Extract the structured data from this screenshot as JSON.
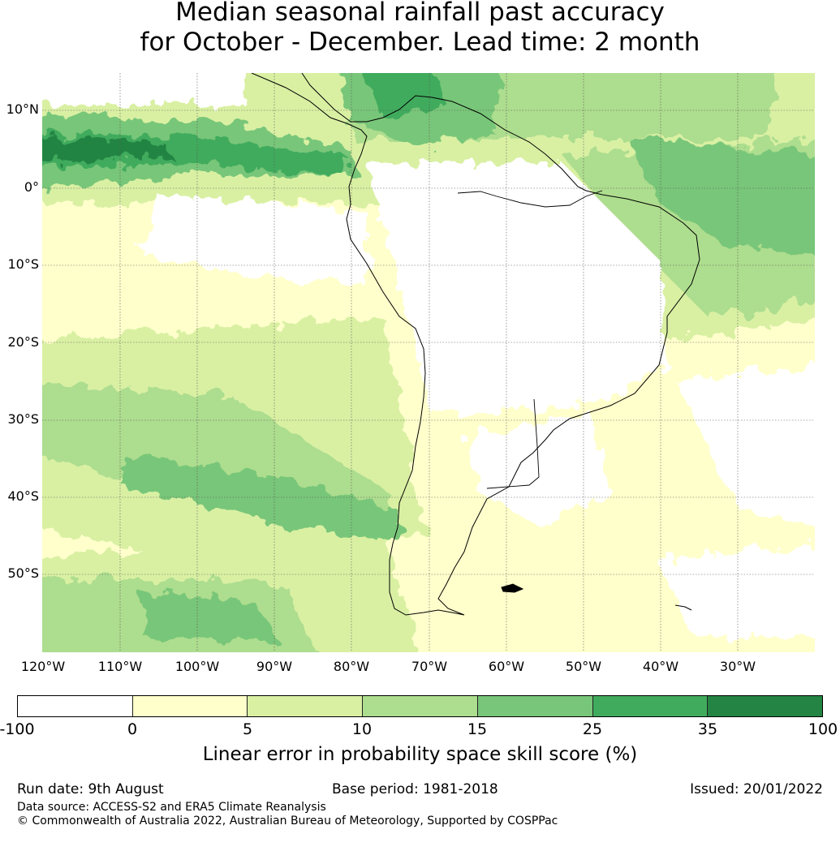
{
  "title": {
    "line1": "Median seasonal rainfall past accuracy",
    "line2": "for October - December. Lead time: 2 month"
  },
  "map": {
    "lat_labels": [
      "10°N",
      "0°",
      "10°S",
      "20°S",
      "30°S",
      "40°S",
      "50°S"
    ],
    "lon_labels": [
      "120°W",
      "110°W",
      "100°W",
      "90°W",
      "80°W",
      "70°W",
      "60°W",
      "50°W",
      "40°W",
      "30°W"
    ]
  },
  "colorbar": {
    "ticks": [
      "-100",
      "0",
      "5",
      "10",
      "15",
      "25",
      "35",
      "100"
    ],
    "colors": [
      "#ffffff",
      "#ffffcc",
      "#d9f0a3",
      "#addd8e",
      "#78c679",
      "#41ab5d",
      "#238443"
    ],
    "label": "Linear error in probability space skill score (%)"
  },
  "footer": {
    "run_date": "Run date: 9th August",
    "base_period": "Base period: 1981-2018",
    "issued": "Issued: 20/01/2022",
    "data_source": "Data source: ACCESS-S2 and ERA5 Climate Reanalysis",
    "copyright": "© Commonwealth of Australia 2022, Australian Bureau of Meteorology, Supported by COSPPac"
  }
}
